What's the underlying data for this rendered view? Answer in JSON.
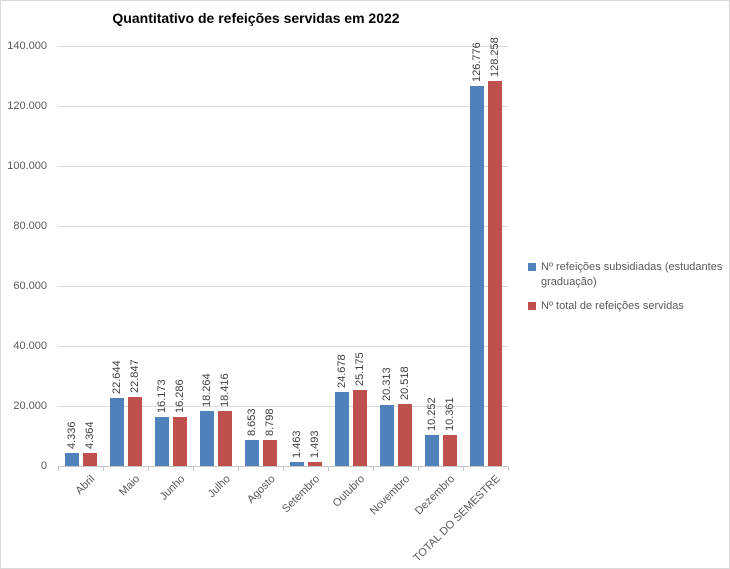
{
  "chart": {
    "title": "Quantitativo de refeições servidas em 2022"
  },
  "chart_data": {
    "type": "bar",
    "title": "Quantitativo de refeições servidas em 2022",
    "categories": [
      "Abril",
      "Maio",
      "Junho",
      "Julho",
      "Agosto",
      "Setembro",
      "Outubro",
      "Novembro",
      "Dezembro",
      "TOTAL DO SEMESTRE"
    ],
    "series": [
      {
        "name": "Nº refeições subsidiadas (estudantes graduação)",
        "color": "#4F81BD",
        "values": [
          4336,
          22644,
          16173,
          18264,
          8653,
          1463,
          24678,
          20313,
          10252,
          126776
        ],
        "data_labels": [
          "4.336",
          "22.644",
          "16.173",
          "18.264",
          "8.653",
          "1.463",
          "24.678",
          "20.313",
          "10.252",
          "126.776"
        ]
      },
      {
        "name": "Nº total de refeições servidas",
        "color": "#C0504D",
        "values": [
          4364,
          22847,
          16286,
          18416,
          8798,
          1493,
          25175,
          20518,
          10361,
          128258
        ],
        "data_labels": [
          "4.364",
          "22.847",
          "16.286",
          "18.416",
          "8.798",
          "1.493",
          "25.175",
          "20.518",
          "10.361",
          "128.258"
        ]
      }
    ],
    "ylim": [
      0,
      140000
    ],
    "y_tick_step": 20000,
    "y_tick_labels": [
      "0",
      "20.000",
      "40.000",
      "60.000",
      "80.000",
      "100.000",
      "120.000",
      "140.000"
    ],
    "grid": true,
    "legend_position": "right",
    "colors": {
      "gridline": "#d9d9d9",
      "axis_line": "#c6c6c6",
      "tick_label": "#595959",
      "value_label": "#404040",
      "title": "#000000"
    }
  }
}
